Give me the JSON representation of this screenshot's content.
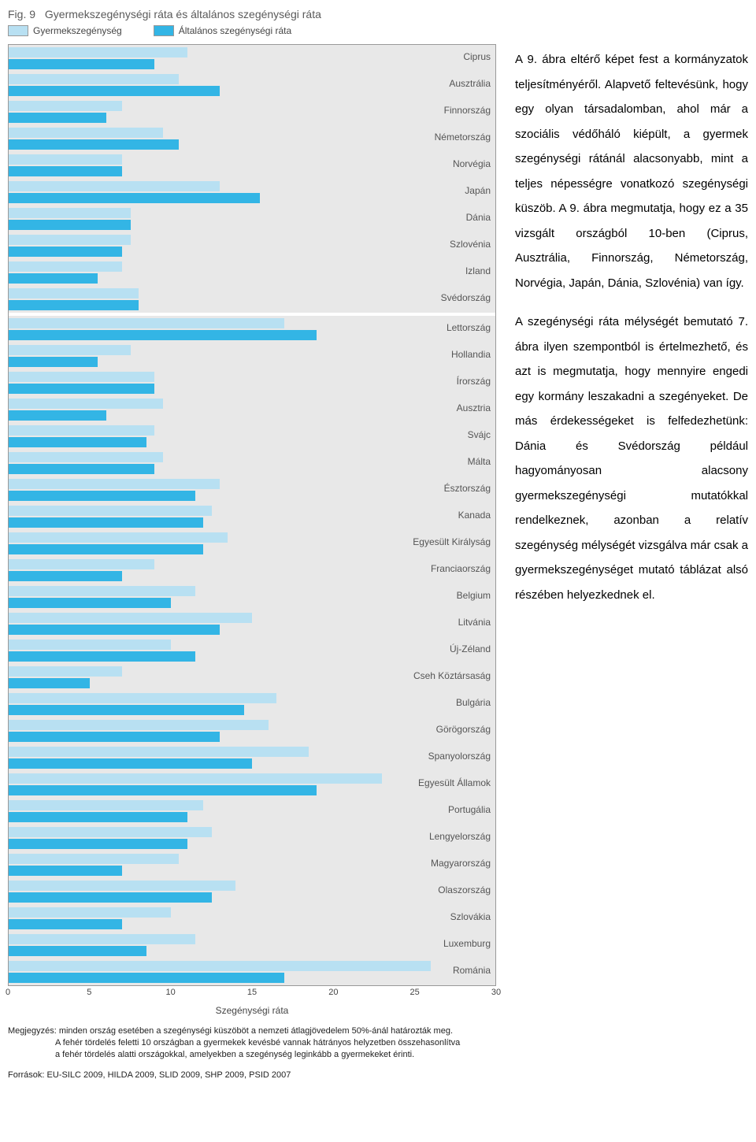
{
  "figure": {
    "title_prefix": "Fig. 9",
    "title_text": "Gyermekszegénységi ráta és általános szegénységi ráta",
    "legend": {
      "child": "Gyermekszegénység",
      "general": "Általános szegénységi ráta"
    },
    "colors": {
      "child": "#b8e0f2",
      "general": "#33b5e5",
      "row_bg": "#e8e8e8",
      "border": "#999999",
      "text_muted": "#5a5a5a"
    },
    "x": {
      "min": 0,
      "max": 30,
      "ticks": [
        0,
        5,
        10,
        15,
        20,
        25,
        30
      ],
      "label": "Szegénységi ráta"
    },
    "series": [
      {
        "country": "Ciprus",
        "child": 11.0,
        "general": 9.0
      },
      {
        "country": "Ausztrália",
        "child": 10.5,
        "general": 13.0
      },
      {
        "country": "Finnország",
        "child": 7.0,
        "general": 6.0
      },
      {
        "country": "Németország",
        "child": 9.5,
        "general": 10.5
      },
      {
        "country": "Norvégia",
        "child": 7.0,
        "general": 7.0
      },
      {
        "country": "Japán",
        "child": 13.0,
        "general": 15.5
      },
      {
        "country": "Dánia",
        "child": 7.5,
        "general": 7.5
      },
      {
        "country": "Szlovénia",
        "child": 7.5,
        "general": 7.0
      },
      {
        "country": "Izland",
        "child": 7.0,
        "general": 5.5
      },
      {
        "country": "Svédország",
        "child": 8.0,
        "general": 8.0
      },
      {
        "separator": true
      },
      {
        "country": "Lettország",
        "child": 17.0,
        "general": 19.0
      },
      {
        "country": "Hollandia",
        "child": 7.5,
        "general": 5.5
      },
      {
        "country": "Írország",
        "child": 9.0,
        "general": 9.0
      },
      {
        "country": "Ausztria",
        "child": 9.5,
        "general": 6.0
      },
      {
        "country": "Svájc",
        "child": 9.0,
        "general": 8.5
      },
      {
        "country": "Málta",
        "child": 9.5,
        "general": 9.0
      },
      {
        "country": "Észtország",
        "child": 13.0,
        "general": 11.5
      },
      {
        "country": "Kanada",
        "child": 12.5,
        "general": 12.0
      },
      {
        "country": "Egyesült Királyság",
        "child": 13.5,
        "general": 12.0
      },
      {
        "country": "Franciaország",
        "child": 9.0,
        "general": 7.0
      },
      {
        "country": "Belgium",
        "child": 11.5,
        "general": 10.0
      },
      {
        "country": "Litvánia",
        "child": 15.0,
        "general": 13.0
      },
      {
        "country": "Új-Zéland",
        "child": 10.0,
        "general": 11.5
      },
      {
        "country": "Cseh Köztársaság",
        "child": 7.0,
        "general": 5.0
      },
      {
        "country": "Bulgária",
        "child": 16.5,
        "general": 14.5
      },
      {
        "country": "Görögország",
        "child": 16.0,
        "general": 13.0
      },
      {
        "country": "Spanyolország",
        "child": 18.5,
        "general": 15.0
      },
      {
        "country": "Egyesült Államok",
        "child": 23.0,
        "general": 19.0
      },
      {
        "country": "Portugália",
        "child": 12.0,
        "general": 11.0
      },
      {
        "country": "Lengyelország",
        "child": 12.5,
        "general": 11.0
      },
      {
        "country": "Magyarország",
        "child": 10.5,
        "general": 7.0
      },
      {
        "country": "Olaszország",
        "child": 14.0,
        "general": 12.5
      },
      {
        "country": "Szlovákia",
        "child": 10.0,
        "general": 7.0
      },
      {
        "country": "Luxemburg",
        "child": 11.5,
        "general": 8.5
      },
      {
        "country": "Románia",
        "child": 26.0,
        "general": 17.0
      }
    ],
    "notes_label": "Megjegyzés:",
    "notes": [
      "minden ország esetében a szegénységi küszöböt a nemzeti átlagjövedelem 50%-ánál határozták meg.",
      "A fehér tördelés feletti 10 országban a gyermekek kevésbé vannak hátrányos helyzetben összehasonlítva",
      "a fehér tördelés alatti országokkal, amelyekben a szegénység leginkább a gyermekeket érinti."
    ],
    "sources_label": "Források:",
    "sources_text": "EU-SILC 2009, HILDA 2009, SLID 2009, SHP 2009, PSID 2007"
  },
  "body_text": {
    "p1": "A 9. ábra eltérő  képet fest a kormányzatok teljesítményéről. Alapvető feltevésünk, hogy egy olyan társadalomban, ahol már a szociális védőháló kiépült, a gyermek szegénységi rátánál alacsonyabb, mint a teljes népességre vonatkozó szegénységi küszöb. A 9. ábra megmutatja, hogy ez a 35 vizsgált országból 10-ben (Ciprus, Ausztrália, Finnország, Németország, Norvégia, Japán, Dánia, Szlovénia) van így.",
    "p2": "A szegénységi ráta mélységét bemutató 7. ábra ilyen szempontból is értelmezhető, és azt is megmutatja, hogy mennyire engedi egy kormány leszakadni a szegényeket. De más érdekességeket is felfedezhetünk: Dánia és Svédország például hagyományosan alacsony gyermekszegénységi mutatókkal rendelkeznek, azonban a relatív szegénység mélységét vizsgálva már csak a gyermekszegénységet mutató táblázat alsó részében helyezkednek el."
  }
}
